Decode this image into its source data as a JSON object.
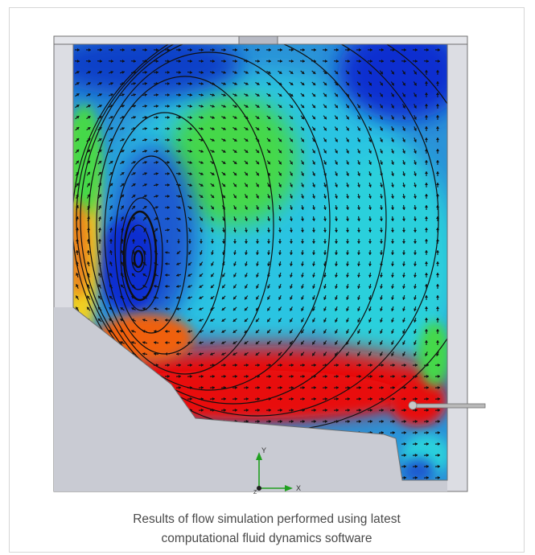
{
  "figure": {
    "axis_x_label": "X",
    "axis_y_label": "Y",
    "axis_z_label": "Z",
    "colors": {
      "frame_fill": "#dcdde3",
      "frame_stroke": "#707070",
      "solid_fill": "#c9cbd3",
      "field_base": "#2a93d8",
      "low_speed": "#0a2fd0",
      "mid_speed": "#2ad8e0",
      "mid_high": "#44d84a",
      "high_speed": "#f0d020",
      "max_speed": "#e81010",
      "vector_color": "#101010",
      "axis_x": "#20a020",
      "axis_y": "#20a020"
    }
  },
  "caption": {
    "line1": "Results of flow simulation performed using latest",
    "line2": "computational fluid dynamics software"
  }
}
